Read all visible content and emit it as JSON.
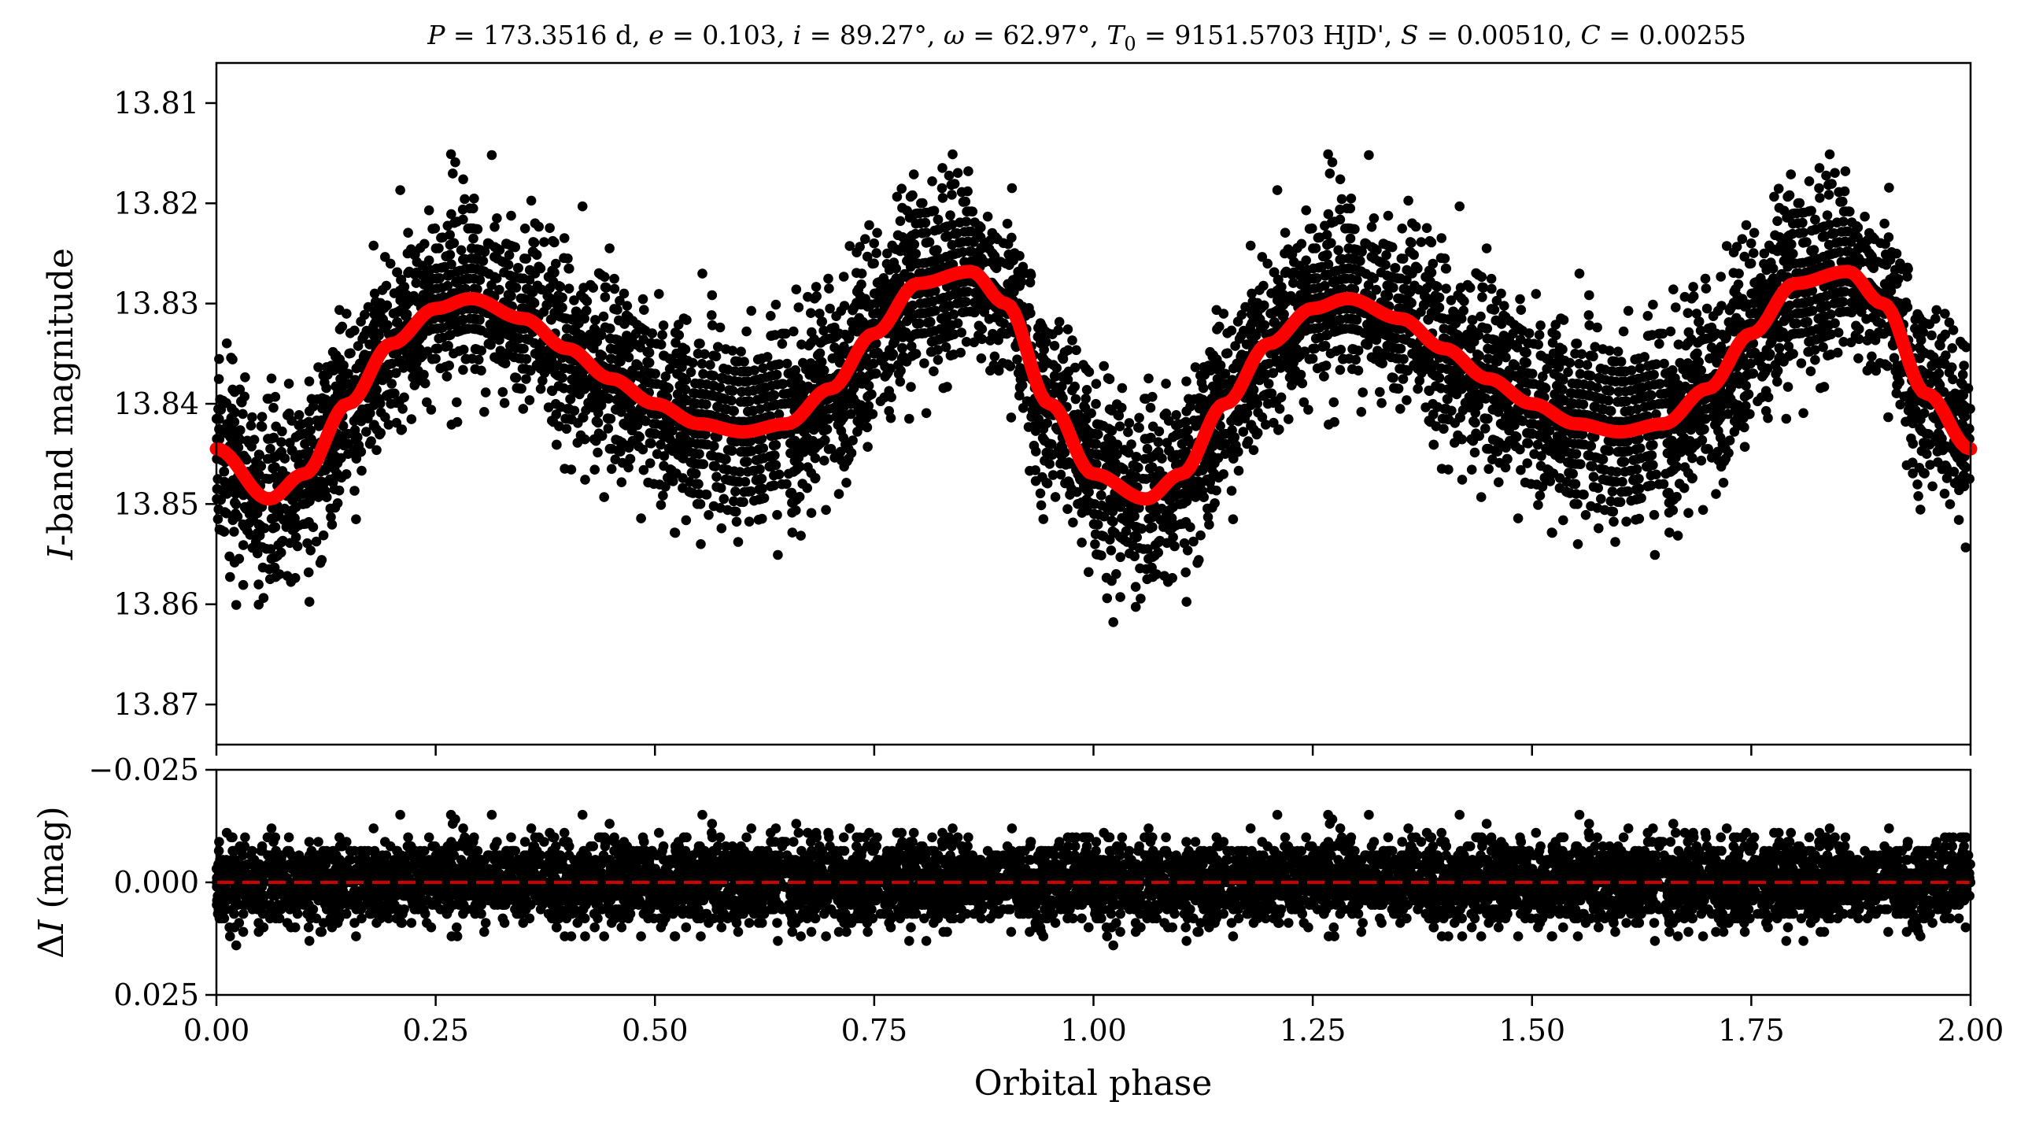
{
  "chart_data": [
    {
      "type": "scatter",
      "panel": "light-curve",
      "title": "P = 173.3516 d, e = 0.103, i = 89.27°, ω = 62.97°, T0 = 9151.5703 HJD', S = 0.00510, C = 0.00255",
      "title_parts": {
        "P_sym": "P",
        "P_val": " = 173.3516 d, ",
        "e_sym": "e",
        "e_val": " = 0.103, ",
        "i_sym": "i",
        "i_val": " = 89.27°, ",
        "w_sym": "ω",
        "w_val": " = 62.97°, ",
        "T_sym": "T",
        "T_sub": "0",
        "T_val": " = 9151.5703 HJD', ",
        "S_sym": "S",
        "S_val": " = 0.00510, ",
        "C_sym": "C",
        "C_val": " = 0.00255"
      },
      "xlabel": "",
      "ylabel": "I-band magnitude",
      "ylabel_parts": {
        "italic": "I",
        "rest": "-band magnitude"
      },
      "xlim": [
        0.0,
        2.0
      ],
      "ylim": [
        13.874,
        13.806
      ],
      "y_inverted": true,
      "xticks": [
        0.0,
        0.25,
        0.5,
        0.75,
        1.0,
        1.25,
        1.5,
        1.75,
        2.0
      ],
      "yticks": [
        13.81,
        13.82,
        13.83,
        13.84,
        13.85,
        13.86,
        13.87
      ],
      "ytick_labels": [
        "13.81",
        "13.82",
        "13.83",
        "13.84",
        "13.85",
        "13.86",
        "13.87"
      ],
      "points_color": "#000000",
      "model_color": "#ff0000",
      "model_curve": {
        "x": [
          0.0,
          0.06,
          0.1,
          0.15,
          0.2,
          0.25,
          0.29,
          0.35,
          0.4,
          0.45,
          0.5,
          0.55,
          0.6,
          0.65,
          0.7,
          0.75,
          0.8,
          0.86,
          0.9,
          0.95,
          1.0,
          1.06,
          1.1,
          1.15,
          1.2,
          1.25,
          1.29,
          1.35,
          1.4,
          1.45,
          1.5,
          1.55,
          1.6,
          1.65,
          1.7,
          1.75,
          1.8,
          1.86,
          1.9,
          1.95,
          2.0
        ],
        "y": [
          13.8445,
          13.8495,
          13.847,
          13.84,
          13.834,
          13.8305,
          13.8295,
          13.8315,
          13.8345,
          13.8375,
          13.84,
          13.842,
          13.8428,
          13.842,
          13.8385,
          13.833,
          13.828,
          13.8268,
          13.83,
          13.84,
          13.847,
          13.8495,
          13.847,
          13.84,
          13.834,
          13.8305,
          13.8295,
          13.8315,
          13.8345,
          13.8375,
          13.84,
          13.842,
          13.8428,
          13.842,
          13.8385,
          13.833,
          13.828,
          13.8268,
          13.83,
          13.839,
          13.8445
        ]
      },
      "scatter_summary": {
        "approx_points_per_phase_cycle": 3500,
        "typical_scatter_mag": 0.0045,
        "brightest_mag": 13.816,
        "faintest_mag": 13.862
      }
    },
    {
      "type": "scatter",
      "panel": "residuals",
      "xlabel": "Orbital phase",
      "ylabel": "ΔI (mag)",
      "ylabel_parts": {
        "delta": "Δ",
        "italic": "I",
        "rest": " (mag)"
      },
      "xlim": [
        0.0,
        2.0
      ],
      "ylim": [
        0.025,
        -0.025
      ],
      "y_inverted": true,
      "xticks": [
        0.0,
        0.25,
        0.5,
        0.75,
        1.0,
        1.25,
        1.5,
        1.75,
        2.0
      ],
      "xtick_labels": [
        "0.00",
        "0.25",
        "0.50",
        "0.75",
        "1.00",
        "1.25",
        "1.50",
        "1.75",
        "2.00"
      ],
      "yticks": [
        -0.025,
        0.0,
        0.025
      ],
      "ytick_labels": [
        "−0.025",
        "0.000",
        "0.025"
      ],
      "zero_line": {
        "y": 0.0,
        "style": "dashed",
        "color": "#cc0000"
      },
      "points_color": "#000000",
      "scatter_summary": {
        "typical_scatter_mag": 0.0045,
        "min_residual": -0.015,
        "max_residual": 0.016
      }
    }
  ]
}
